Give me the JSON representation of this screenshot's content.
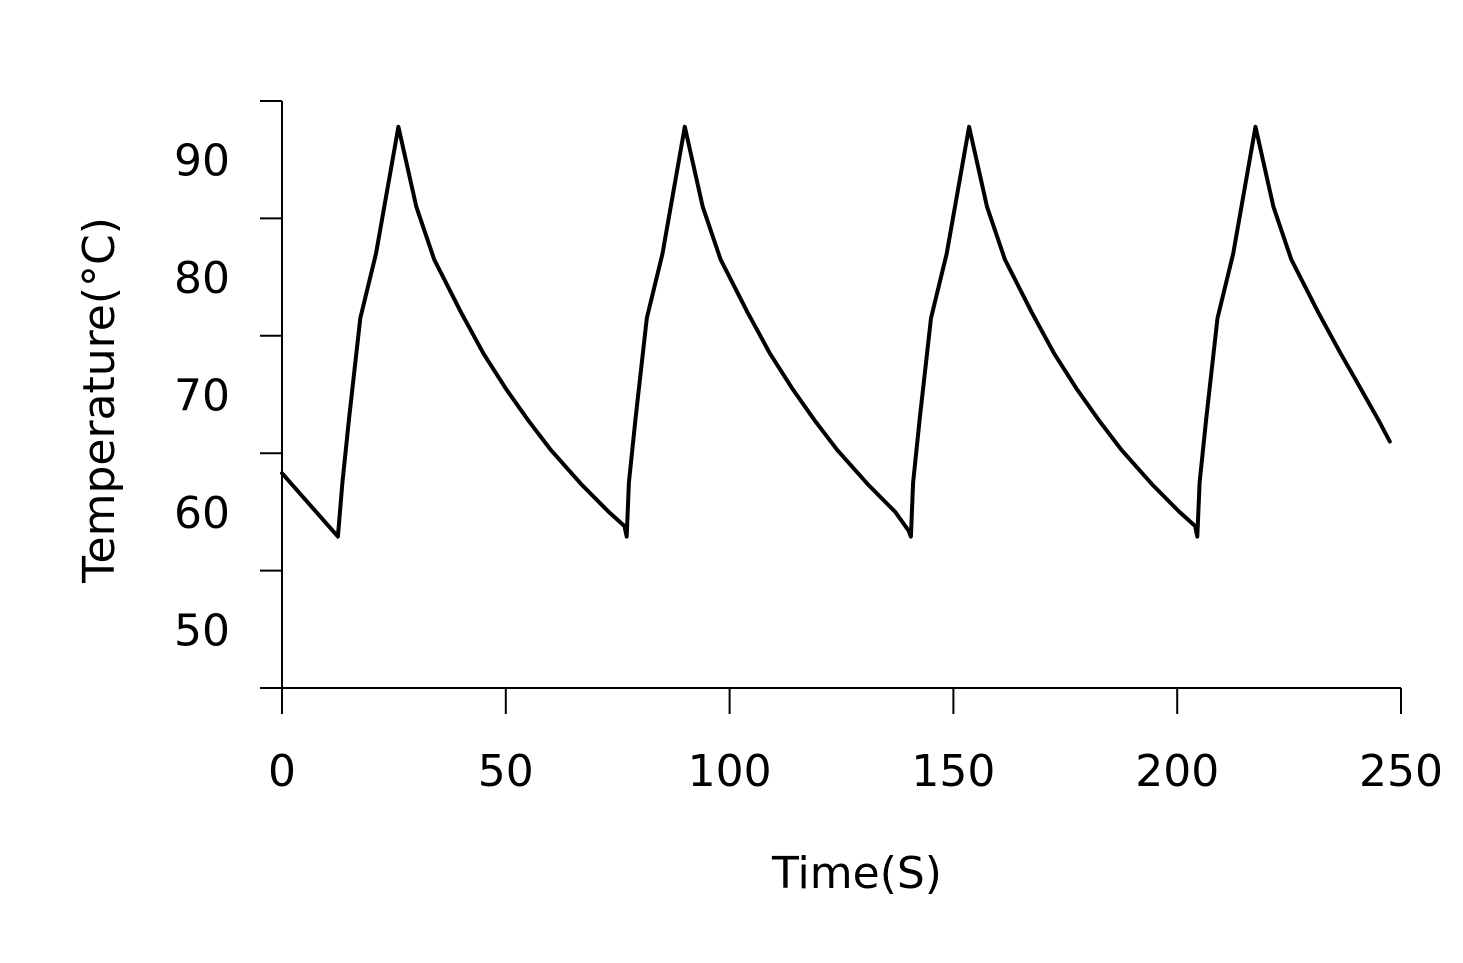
{
  "chart_data": {
    "type": "line",
    "title": "",
    "xlabel": "Time(S)",
    "ylabel": "Temperature(°C)",
    "xlim": [
      0,
      250
    ],
    "ylim": [
      45,
      95
    ],
    "xticks": [
      0,
      50,
      100,
      150,
      200,
      250
    ],
    "yticks": [
      50,
      60,
      70,
      80,
      90
    ],
    "y_tick_marks": [
      45,
      55,
      65,
      75,
      85,
      95
    ],
    "grid": false,
    "legend": "none",
    "line_color": "#000000",
    "series": [
      {
        "points": [
          [
            0,
            63.3
          ],
          [
            12.5,
            57.9
          ],
          [
            13.5,
            62.5
          ],
          [
            15,
            68.0
          ],
          [
            17.5,
            76.5
          ],
          [
            21,
            82.0
          ],
          [
            26,
            92.8
          ],
          [
            30,
            86.0
          ],
          [
            34,
            81.5
          ],
          [
            40,
            77.0
          ],
          [
            45,
            73.5
          ],
          [
            50,
            70.5
          ],
          [
            55,
            67.8
          ],
          [
            60,
            65.3
          ],
          [
            67,
            62.3
          ],
          [
            73,
            60.0
          ],
          [
            76.5,
            58.8
          ],
          [
            77,
            57.9
          ],
          [
            77.5,
            62.5
          ],
          [
            79,
            68.0
          ],
          [
            81.5,
            76.5
          ],
          [
            85,
            82.0
          ],
          [
            90,
            92.8
          ],
          [
            94,
            86.0
          ],
          [
            98,
            81.5
          ],
          [
            104,
            77.0
          ],
          [
            109,
            73.5
          ],
          [
            114,
            70.5
          ],
          [
            119,
            67.8
          ],
          [
            124,
            65.3
          ],
          [
            131,
            62.3
          ],
          [
            137,
            60.0
          ],
          [
            140,
            58.4
          ],
          [
            140.5,
            57.9
          ],
          [
            141,
            62.5
          ],
          [
            142.5,
            68.0
          ],
          [
            145,
            76.5
          ],
          [
            148.5,
            82.0
          ],
          [
            153.5,
            92.8
          ],
          [
            157.5,
            86.0
          ],
          [
            161.5,
            81.5
          ],
          [
            167.5,
            77.0
          ],
          [
            172.5,
            73.5
          ],
          [
            177.5,
            70.5
          ],
          [
            182.5,
            67.8
          ],
          [
            187.5,
            65.3
          ],
          [
            194.5,
            62.3
          ],
          [
            200.5,
            60.0
          ],
          [
            204,
            58.8
          ],
          [
            204.5,
            57.9
          ],
          [
            205,
            62.5
          ],
          [
            206.5,
            68.0
          ],
          [
            209,
            76.5
          ],
          [
            212.5,
            82.0
          ],
          [
            217.5,
            92.8
          ],
          [
            221.5,
            86.0
          ],
          [
            225.5,
            81.5
          ],
          [
            231.5,
            77.0
          ],
          [
            236.5,
            73.5
          ],
          [
            241,
            70.5
          ],
          [
            245,
            67.8
          ],
          [
            247.5,
            66.0
          ]
        ]
      }
    ]
  }
}
